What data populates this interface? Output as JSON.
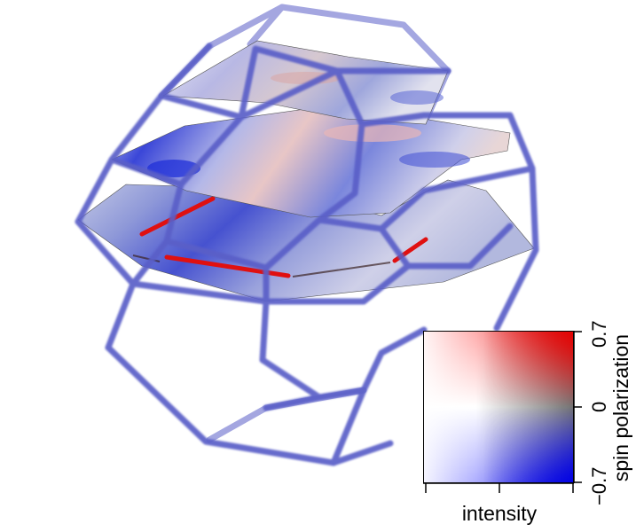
{
  "colorbar": {
    "y_ticks": [
      "0.7",
      "0",
      "−0.7"
    ],
    "y_label": "spin polarization",
    "x_label": "intensity",
    "colors": {
      "positive": "#e00000",
      "zero": "#ffffff",
      "negative": "#0000e0",
      "high_intensity_mid": "#444444"
    }
  },
  "brillouin_zone": {
    "edge_color": "#5a5fc8"
  },
  "slices": {
    "count": 3,
    "highlight_color": "#e01010"
  }
}
